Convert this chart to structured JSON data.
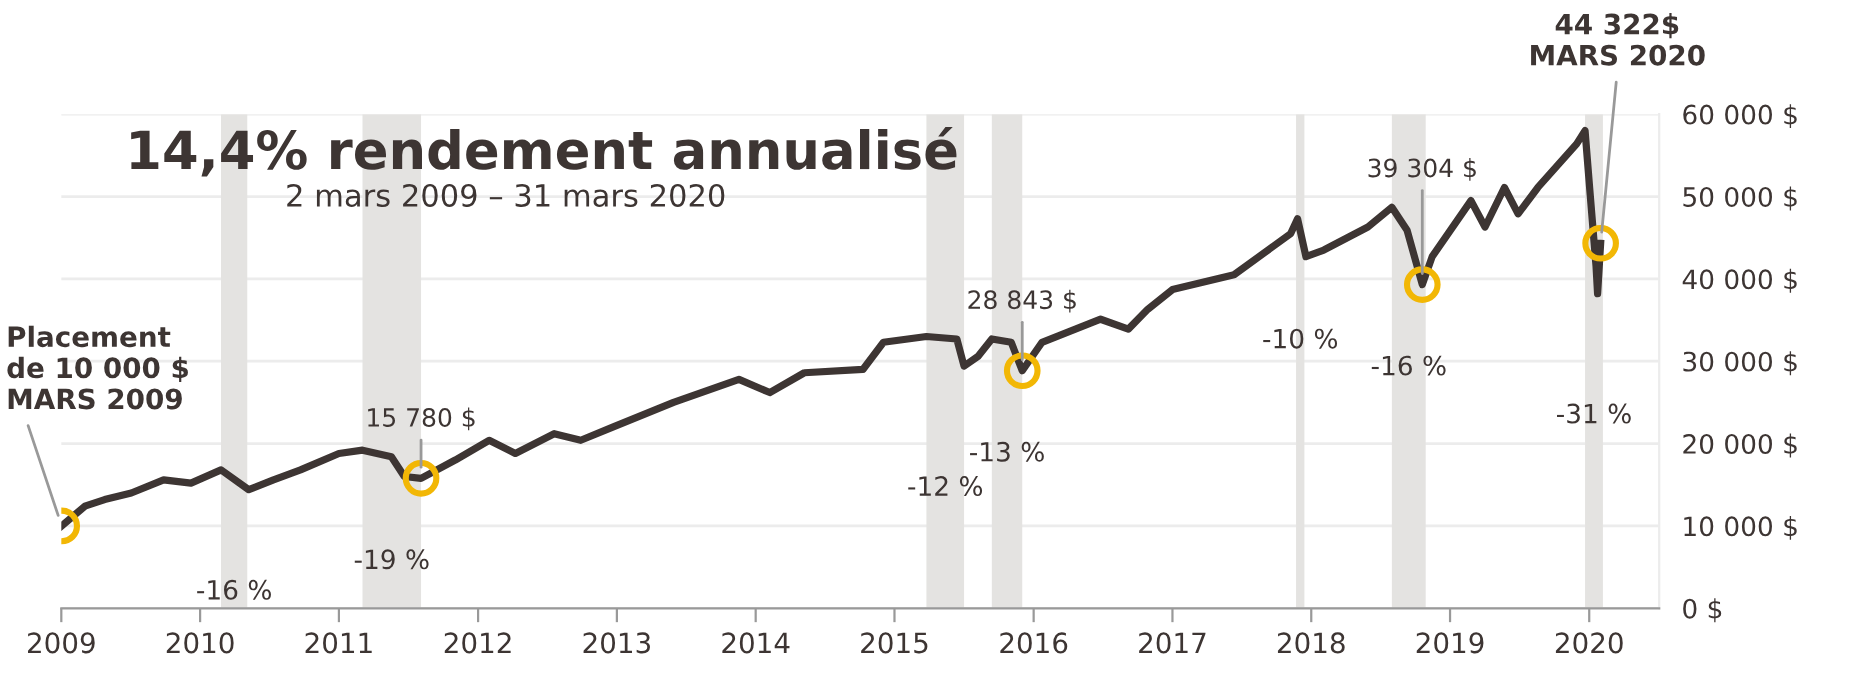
{
  "chart_data": {
    "type": "line",
    "title": "14,4% rendement annualisé",
    "subtitle": "2 mars 2009 – 31 mars 2020",
    "x": [
      "2009-03-02",
      "2009-05-02",
      "2009-06-23",
      "2009-09-01",
      "2009-11-25",
      "2010-02-05",
      "2010-04-25",
      "2010-07-07",
      "2010-09-10",
      "2010-11-20",
      "2011-03-01",
      "2011-05-02",
      "2011-07-17",
      "2011-08-20",
      "2011-10-03",
      "2012-01-01",
      "2012-03-30",
      "2012-06-07",
      "2012-09-17",
      "2012-11-26",
      "2013-02-18",
      "2013-07-28",
      "2014-01-16",
      "2014-04-07",
      "2014-07-07",
      "2014-12-08",
      "2015-01-31",
      "2015-05-24",
      "2015-08-12",
      "2015-08-31",
      "2015-10-07",
      "2015-11-12",
      "2016-01-02",
      "2016-01-31",
      "2016-03-23",
      "2016-08-24",
      "2016-11-05",
      "2016-12-26",
      "2017-03-01",
      "2017-08-10",
      "2018-01-06",
      "2018-01-24",
      "2018-02-15",
      "2018-04-03",
      "2018-07-28",
      "2018-09-29",
      "2018-11-08",
      "2018-12-18",
      "2019-01-13",
      "2019-04-25",
      "2019-06-01",
      "2019-07-22",
      "2019-08-27",
      "2019-10-18",
      "2020-01-28",
      "2020-02-19",
      "2020-03-02",
      "2020-03-19",
      "2020-03-23",
      "2020-03-31"
    ],
    "series": [
      {
        "color": "#3d3533",
        "values": [
          10000,
          12400,
          13200,
          14000,
          15600,
          15200,
          16800,
          14400,
          15600,
          16800,
          18800,
          19200,
          18400,
          16000,
          15780,
          18000,
          20400,
          18800,
          21200,
          20400,
          22000,
          25000,
          27800,
          26200,
          28600,
          29000,
          32300,
          33000,
          32700,
          29400,
          30600,
          32700,
          32300,
          28843,
          32300,
          35100,
          33900,
          36300,
          38700,
          40500,
          45500,
          47300,
          42700,
          43500,
          46300,
          48700,
          45900,
          39304,
          42700,
          49500,
          46300,
          51100,
          47900,
          51100,
          56400,
          58000,
          51100,
          41500,
          38200,
          44322
        ]
      }
    ],
    "xlim": [
      "2009-03-01",
      "2020-09-01"
    ],
    "xticks": [
      {
        "value": "2009-03-01",
        "label": "2009"
      },
      {
        "value": "2010-03-01",
        "label": "2010"
      },
      {
        "value": "2011-03-01",
        "label": "2011"
      },
      {
        "value": "2012-03-01",
        "label": "2012"
      },
      {
        "value": "2013-03-01",
        "label": "2013"
      },
      {
        "value": "2014-03-01",
        "label": "2014"
      },
      {
        "value": "2015-03-01",
        "label": "2015"
      },
      {
        "value": "2016-03-01",
        "label": "2016"
      },
      {
        "value": "2017-03-01",
        "label": "2017"
      },
      {
        "value": "2018-03-01",
        "label": "2018"
      },
      {
        "value": "2019-03-01",
        "label": "2019"
      },
      {
        "value": "2020-03-01",
        "label": "2020"
      }
    ],
    "ylim": [
      0,
      60000
    ],
    "yticks": [
      {
        "value": 0,
        "label": "0 $"
      },
      {
        "value": 10000,
        "label": "10 000 $"
      },
      {
        "value": 20000,
        "label": "20 000 $"
      },
      {
        "value": 30000,
        "label": "30 000 $"
      },
      {
        "value": 40000,
        "label": "40 000 $"
      },
      {
        "value": 50000,
        "label": "50 000 $"
      },
      {
        "value": 60000,
        "label": "60 000 $"
      }
    ],
    "grid": "y",
    "bands": [
      {
        "axis": "x",
        "from": "2010-04-25",
        "to": "2010-07-03",
        "label": "-16 %",
        "color": "#e4e3e1"
      },
      {
        "axis": "x",
        "from": "2011-05-02",
        "to": "2011-10-03",
        "label": "-19 %",
        "color": "#e4e3e1"
      },
      {
        "axis": "x",
        "from": "2015-05-24",
        "to": "2015-08-31",
        "label": "-12 %",
        "color": "#e4e3e1"
      },
      {
        "axis": "x",
        "from": "2015-11-12",
        "to": "2016-01-31",
        "label": "-13 %",
        "color": "#e4e3e1"
      },
      {
        "axis": "x",
        "from": "2018-01-20",
        "to": "2018-02-11",
        "label": "-10 %",
        "color": "#e4e3e1"
      },
      {
        "axis": "x",
        "from": "2018-09-29",
        "to": "2018-12-27",
        "label": "-16 %",
        "color": "#e4e3e1"
      },
      {
        "axis": "x",
        "from": "2020-02-19",
        "to": "2020-04-06",
        "label": "-31 %",
        "color": "#e4e3e1"
      }
    ],
    "annotations": [
      {
        "text": "Placement\nde 10 000 $\nMARS 2009",
        "x": "2009-03-02",
        "y": 10000
      },
      {
        "text": "15 780 $",
        "x": "2011-10-03",
        "y": 15780
      },
      {
        "text": "28 843 $",
        "x": "2016-01-31",
        "y": 28843
      },
      {
        "text": "39 304 $",
        "x": "2018-12-18",
        "y": 39304
      },
      {
        "text": "44 322$\nMARS 2020",
        "x": "2020-03-31",
        "y": 44322
      }
    ]
  }
}
